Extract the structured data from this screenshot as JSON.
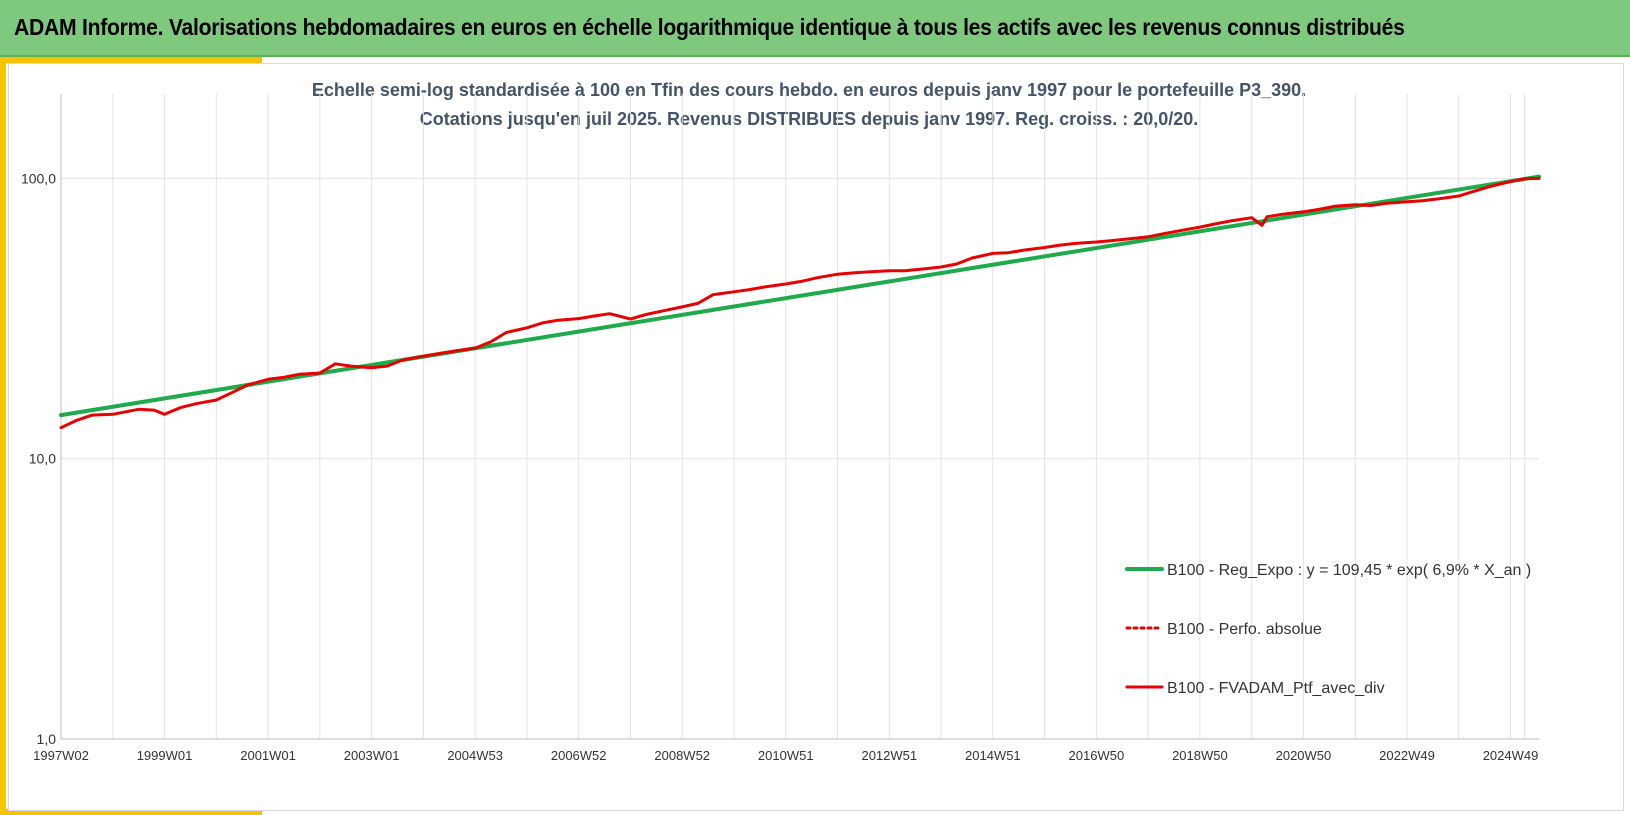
{
  "header": {
    "title": "ADAM Informe. Valorisations hebdomadaires en euros en échelle logarithmique identique à tous les actifs avec les revenus connus distribués"
  },
  "colors": {
    "header_bg": "#7fc97f",
    "accent": "#f5c400",
    "regression": "#1faa4b",
    "portfolio": "#e60000",
    "subtitle": "#44546a"
  },
  "chart_data": {
    "type": "line",
    "subtitle_line1": "Echelle semi-log standardisée  à 100 en Tfin des cours hebdo.  en euros depuis janv 1997 pour le portefeuille P3_390.",
    "subtitle_line2": "Cotations jusqu'en juil 2025. Revenus DISTRIBUES depuis janv 1997. Reg. croiss. : 20,0/20.",
    "y_scale": "log",
    "ylim": [
      1,
      200
    ],
    "y_ticks": [
      {
        "value": 1,
        "label": "1,0"
      },
      {
        "value": 10,
        "label": "10,0"
      },
      {
        "value": 100,
        "label": "100,0"
      }
    ],
    "xlim": [
      1997.0,
      2025.55
    ],
    "x_ticks": [
      {
        "value": 1997.0,
        "label": "1997W02"
      },
      {
        "value": 1999.0,
        "label": "1999W01"
      },
      {
        "value": 2001.0,
        "label": "2001W01"
      },
      {
        "value": 2003.0,
        "label": "2003W01"
      },
      {
        "value": 2005.0,
        "label": "2004W53"
      },
      {
        "value": 2007.0,
        "label": "2006W52"
      },
      {
        "value": 2009.0,
        "label": "2008W52"
      },
      {
        "value": 2011.0,
        "label": "2010W51"
      },
      {
        "value": 2013.0,
        "label": "2012W51"
      },
      {
        "value": 2015.0,
        "label": "2014W51"
      },
      {
        "value": 2017.0,
        "label": "2016W50"
      },
      {
        "value": 2019.0,
        "label": "2018W50"
      },
      {
        "value": 2021.0,
        "label": "2020W50"
      },
      {
        "value": 2023.0,
        "label": "2022W49"
      },
      {
        "value": 2025.0,
        "label": "2024W49"
      }
    ],
    "grid": "vertical",
    "legend_position": "bottom-right",
    "series": [
      {
        "name": "B100 - Reg_Expo : y = 109,45 * exp( 6,9% *  X_an )",
        "style": "solid",
        "color": "#1faa4b",
        "x": [
          1997.0,
          2025.55
        ],
        "y": [
          14.3,
          101.5
        ]
      },
      {
        "name": "B100 - Perfo. absolue",
        "style": "dotted",
        "color": "#e60000",
        "x": [],
        "y": []
      },
      {
        "name": "B100 - FVADAM_Ptf_avec_div",
        "style": "solid",
        "color": "#e60000",
        "x": [
          1997.0,
          1997.3,
          1997.6,
          1998.0,
          1998.5,
          1998.8,
          1999.0,
          1999.3,
          1999.6,
          2000.0,
          2000.3,
          2000.6,
          2001.0,
          2001.3,
          2001.6,
          2002.0,
          2002.3,
          2002.6,
          2003.0,
          2003.3,
          2003.6,
          2004.0,
          2004.3,
          2004.6,
          2005.0,
          2005.3,
          2005.6,
          2006.0,
          2006.3,
          2006.6,
          2007.0,
          2007.3,
          2007.6,
          2008.0,
          2008.3,
          2008.6,
          2009.0,
          2009.3,
          2009.6,
          2010.0,
          2010.3,
          2010.6,
          2011.0,
          2011.3,
          2011.6,
          2012.0,
          2012.3,
          2012.6,
          2013.0,
          2013.3,
          2013.6,
          2014.0,
          2014.3,
          2014.6,
          2015.0,
          2015.3,
          2015.6,
          2016.0,
          2016.3,
          2016.6,
          2017.0,
          2017.3,
          2017.6,
          2018.0,
          2018.3,
          2018.6,
          2019.0,
          2019.3,
          2019.6,
          2020.0,
          2020.2,
          2020.3,
          2020.6,
          2021.0,
          2021.3,
          2021.6,
          2022.0,
          2022.3,
          2022.6,
          2023.0,
          2023.3,
          2023.6,
          2024.0,
          2024.3,
          2024.6,
          2025.0,
          2025.3,
          2025.55
        ],
        "y": [
          12.9,
          13.7,
          14.3,
          14.4,
          15.0,
          14.9,
          14.4,
          15.2,
          15.7,
          16.2,
          17.2,
          18.3,
          19.2,
          19.5,
          20.0,
          20.2,
          21.8,
          21.4,
          21.1,
          21.4,
          22.5,
          23.2,
          23.7,
          24.2,
          24.8,
          26.1,
          28.2,
          29.3,
          30.5,
          31.2,
          31.6,
          32.3,
          32.9,
          31.5,
          32.7,
          33.6,
          34.8,
          35.8,
          38.5,
          39.4,
          40.1,
          41.0,
          42.0,
          42.9,
          44.2,
          45.5,
          46.0,
          46.4,
          46.8,
          46.8,
          47.4,
          48.3,
          49.5,
          52.0,
          54.0,
          54.3,
          55.5,
          56.7,
          57.8,
          58.6,
          59.3,
          60.0,
          60.8,
          61.9,
          63.5,
          65.0,
          67.0,
          68.8,
          70.5,
          72.4,
          68.0,
          73.0,
          74.5,
          76.0,
          77.5,
          79.5,
          80.5,
          80.0,
          81.5,
          82.5,
          83.2,
          84.5,
          86.5,
          90.0,
          93.5,
          97.5,
          99.8,
          100.0
        ]
      }
    ]
  }
}
